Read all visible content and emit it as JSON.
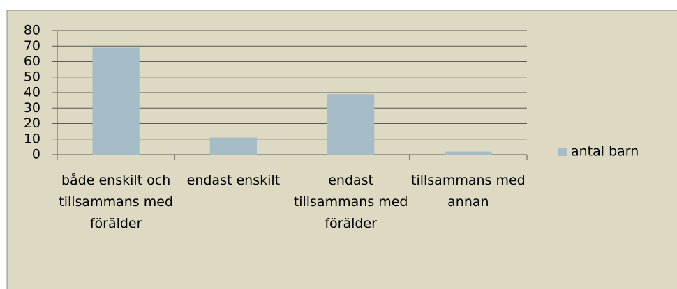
{
  "chart_data": {
    "type": "bar",
    "categories": [
      "både enskilt och tillsammans med förälder",
      "endast enskilt",
      "endast tillsammans med förälder",
      "tillsammans med annan"
    ],
    "series": [
      {
        "name": "antal barn",
        "color": "#a6bcc6",
        "values": [
          69,
          11,
          39,
          2
        ]
      }
    ],
    "ylim": [
      0,
      80
    ],
    "yticks": [
      0,
      10,
      20,
      30,
      40,
      50,
      60,
      70,
      80
    ],
    "grid": true,
    "legend": "right"
  }
}
